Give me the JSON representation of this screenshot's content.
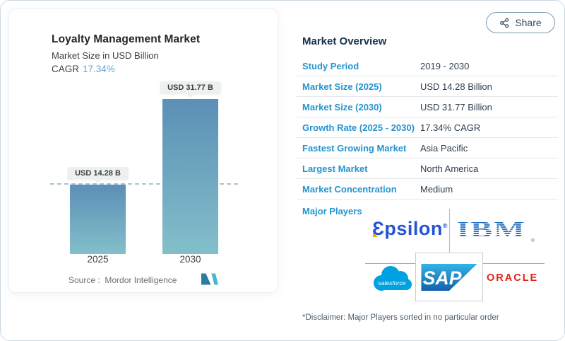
{
  "frame": {
    "share_label": "Share"
  },
  "chart_card": {
    "title": "Loyalty Management Market",
    "subtitle": "Market Size in USD Billion",
    "cagr_label": "CAGR",
    "cagr_value": "17.34%",
    "source_label": "Source :",
    "source_value": "Mordor Intelligence"
  },
  "chart_data": {
    "type": "bar",
    "title": "Loyalty Management Market",
    "subtitle": "Market Size in USD Billion",
    "categories": [
      "2025",
      "2030"
    ],
    "values": [
      14.28,
      31.77
    ],
    "bar_labels": [
      "USD 14.28 B",
      "USD 31.77 B"
    ],
    "unit": "USD Billion",
    "cagr_pct": 17.34,
    "ylim": [
      0,
      35
    ],
    "grid": false,
    "legend": "none",
    "reference_line": {
      "value": 14.28,
      "style": "dashed"
    },
    "bar_gradient": [
      "#5b8fb6",
      "#83bfca"
    ]
  },
  "overview": {
    "title": "Market Overview",
    "rows": [
      {
        "label": "Study Period",
        "value": "2019 - 2030"
      },
      {
        "label": "Market Size (2025)",
        "value": "USD 14.28 Billion"
      },
      {
        "label": "Market Size (2030)",
        "value": "USD 31.77 Billion"
      },
      {
        "label": "Growth Rate (2025 - 2030)",
        "value": "17.34% CAGR"
      },
      {
        "label": "Fastest Growing Market",
        "value": "Asia Pacific"
      },
      {
        "label": "Largest Market",
        "value": "North America"
      },
      {
        "label": "Market Concentration",
        "value": "Medium"
      }
    ],
    "major_players_label": "Major Players",
    "reg_mark": "®",
    "players": [
      {
        "name": "Epsilon",
        "wordmark": "Ɛpsilon",
        "color": "#2553d6"
      },
      {
        "name": "IBM",
        "wordmark": "IBM",
        "color": "#1f70c1"
      },
      {
        "name": "Salesforce",
        "wordmark": "salesforce",
        "color": "#00a1e0"
      },
      {
        "name": "SAP",
        "wordmark": "SAP",
        "color": "#1464ab"
      },
      {
        "name": "Oracle",
        "wordmark": "ORACLE",
        "color": "#e2231a"
      }
    ]
  },
  "disclaimer": "*Disclaimer: Major Players sorted in no particular order",
  "colors": {
    "accent_blue": "#2494cf",
    "heading_navy": "#16324c",
    "value_text": "#2c3e50",
    "cagr_value": "#68a5c8",
    "dashed_line": "#a8c2d2",
    "badge_bg": "#eef0ef",
    "share_text": "#2e4a62",
    "divider": "#a7abb0"
  }
}
